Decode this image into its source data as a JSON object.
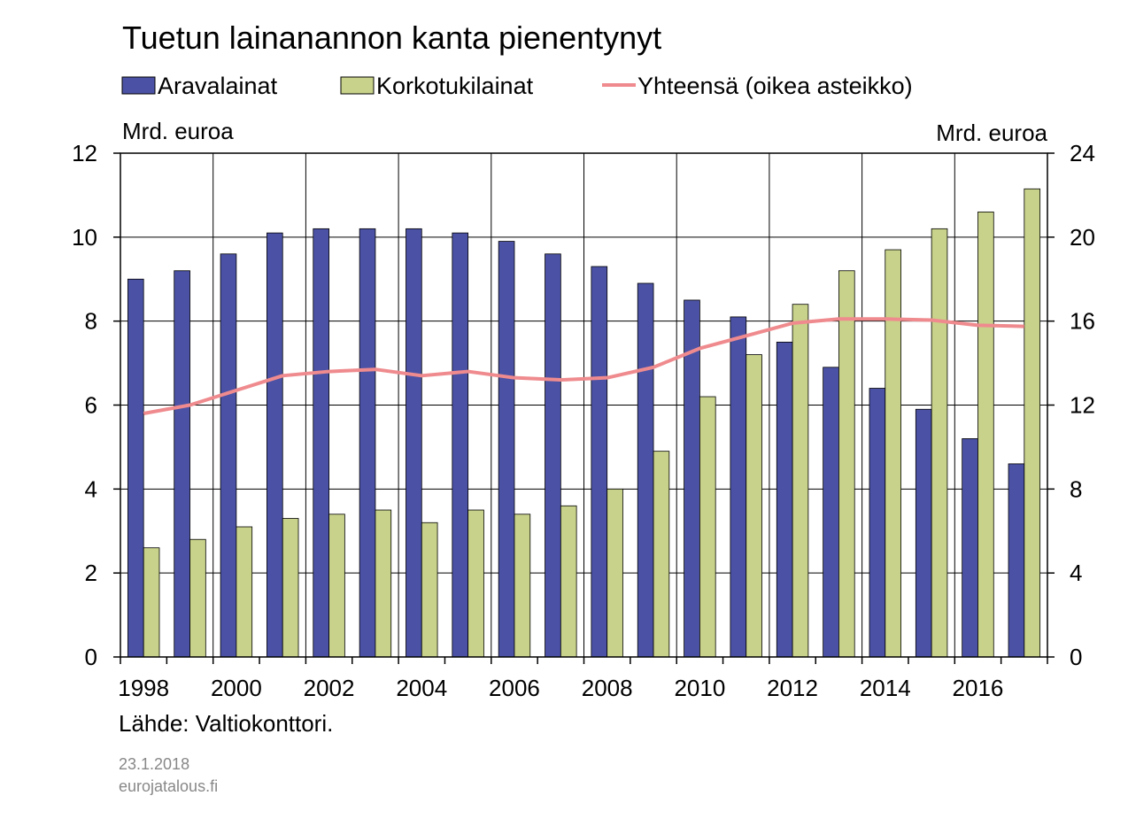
{
  "chart_data": {
    "type": "bar",
    "title": "Tuetun lainanannon kanta pienentynyt",
    "left_unit": "Mrd. euroa",
    "right_unit": "Mrd. euroa",
    "source": "Lähde: Valtiokonttori.",
    "date": "23.1.2018",
    "site": "eurojatalous.fi",
    "ylim_left": [
      0,
      12
    ],
    "ylim_right": [
      0,
      24
    ],
    "yticks_left": [
      "0",
      "2",
      "4",
      "6",
      "8",
      "10",
      "12"
    ],
    "yticks_right": [
      "0",
      "4",
      "8",
      "12",
      "16",
      "20",
      "24"
    ],
    "categories": [
      1998,
      1999,
      2000,
      2001,
      2002,
      2003,
      2004,
      2005,
      2006,
      2007,
      2008,
      2009,
      2010,
      2011,
      2012,
      2013,
      2014,
      2015,
      2016,
      2017
    ],
    "xtick_labels": [
      "1998",
      "2000",
      "2002",
      "2004",
      "2006",
      "2008",
      "2010",
      "2012",
      "2014",
      "2016"
    ],
    "grid": true,
    "legend_position": "top",
    "series": [
      {
        "name": "Aravalainat",
        "type": "bar",
        "axis": "left",
        "color": "#4b52a5",
        "values": [
          9.0,
          9.2,
          9.6,
          10.1,
          10.2,
          10.2,
          10.2,
          10.1,
          9.9,
          9.6,
          9.3,
          8.9,
          8.5,
          8.1,
          7.5,
          6.9,
          6.4,
          5.9,
          5.2,
          4.6
        ]
      },
      {
        "name": "Korkotukilainat",
        "type": "bar",
        "axis": "left",
        "color": "#c8d28a",
        "values": [
          2.6,
          2.8,
          3.1,
          3.3,
          3.4,
          3.5,
          3.2,
          3.5,
          3.4,
          3.6,
          4.0,
          4.9,
          6.2,
          7.2,
          8.4,
          9.2,
          9.7,
          10.2,
          10.6,
          11.15
        ]
      },
      {
        "name": "Yhteensä (oikea asteikko)",
        "type": "line",
        "axis": "right",
        "color": "#ef8b8e",
        "values": [
          11.6,
          12.0,
          12.7,
          13.4,
          13.6,
          13.7,
          13.4,
          13.6,
          13.3,
          13.2,
          13.3,
          13.8,
          14.7,
          15.3,
          15.9,
          16.1,
          16.1,
          16.05,
          15.8,
          15.75
        ]
      }
    ]
  }
}
